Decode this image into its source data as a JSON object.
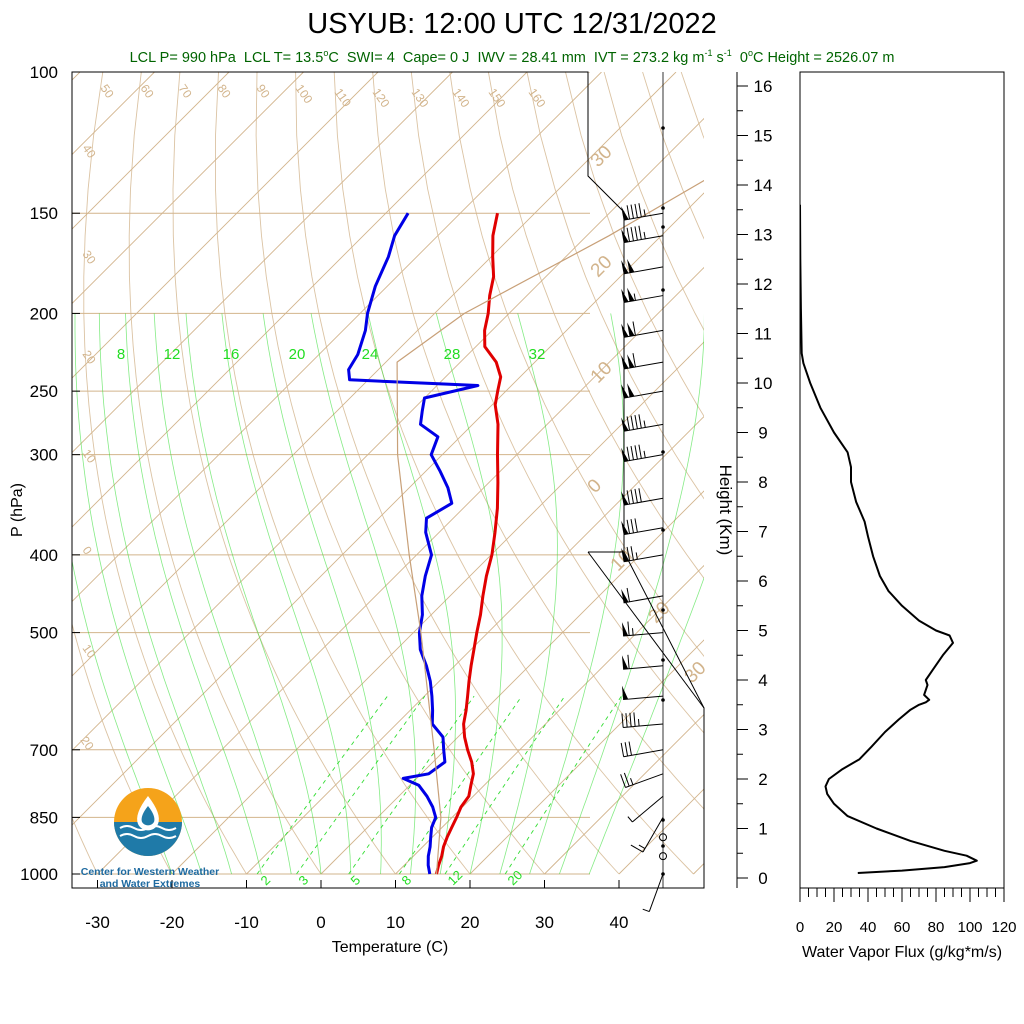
{
  "title": "USYUB: 12:00 UTC 12/31/2022",
  "indices": {
    "lcl_p": "LCL P= 990 hPa",
    "lcl_t": "LCL T= 13.5",
    "swi": "SWI= 4",
    "cape": "Cape= 0 J",
    "iwv": "IWV = 28.41 mm",
    "ivt": "IVT = 273.2 kg m",
    "freezing": "0",
    "freezing_height": "C Height = 2526.07 m"
  },
  "logo": {
    "text": "Center for Western Weather and Water Extremes",
    "icon": "water-drop-logo-icon"
  },
  "colors": {
    "temperature": "#e00000",
    "dewpoint": "#0000e6",
    "isotherm": "#d2b48c",
    "mixing": "#33dd33",
    "label_green": "#006400"
  },
  "chart_data": [
    {
      "type": "line",
      "name": "skew-t",
      "xlabel": "Temperature (C)",
      "ylabel": "P (hPa)",
      "xlim": [
        -34,
        52
      ],
      "x_ticks": [
        -30,
        -20,
        -10,
        0,
        10,
        20,
        30,
        40
      ],
      "p_ticks": [
        100,
        150,
        200,
        250,
        300,
        400,
        500,
        700,
        850,
        1000
      ],
      "ylim": [
        1000,
        100
      ],
      "skew_deg": 45,
      "grid": true,
      "isotherm_labels": [
        "50",
        "60",
        "70",
        "80",
        "90",
        "100",
        "110",
        "120",
        "130",
        "140",
        "150",
        "160",
        "40",
        "30",
        "20",
        "10",
        "0",
        "10",
        "20"
      ],
      "isotherm_right_labels": [
        "30",
        "20",
        "10",
        "0",
        "10",
        "20",
        "30"
      ],
      "mixing_labels_top": [
        "8",
        "12",
        "16",
        "20",
        "24",
        "28",
        "32"
      ],
      "mixing_labels_bottom": [
        "2",
        "3",
        "5",
        "8",
        "12",
        "20"
      ],
      "series": [
        {
          "name": "Temperature",
          "values": [
            [
              1000,
              15.5
            ],
            [
              975,
              14.6
            ],
            [
              950,
              13.8
            ],
            [
              925,
              12.8
            ],
            [
              900,
              12.0
            ],
            [
              875,
              11.3
            ],
            [
              850,
              10.6
            ],
            [
              825,
              9.8
            ],
            [
              800,
              9.4
            ],
            [
              775,
              8.2
            ],
            [
              750,
              7.0
            ],
            [
              725,
              5.2
            ],
            [
              700,
              3.0
            ],
            [
              675,
              0.9
            ],
            [
              650,
              -1.0
            ],
            [
              625,
              -2.5
            ],
            [
              600,
              -4.2
            ],
            [
              575,
              -6.0
            ],
            [
              550,
              -7.8
            ],
            [
              525,
              -9.6
            ],
            [
              500,
              -11.5
            ],
            [
              475,
              -13.4
            ],
            [
              450,
              -15.6
            ],
            [
              425,
              -17.8
            ],
            [
              400,
              -19.9
            ],
            [
              375,
              -22.5
            ],
            [
              350,
              -25.4
            ],
            [
              325,
              -28.8
            ],
            [
              300,
              -32.6
            ],
            [
              275,
              -36.6
            ],
            [
              260,
              -39.6
            ],
            [
              250,
              -41.1
            ],
            [
              240,
              -42.6
            ],
            [
              230,
              -45.2
            ],
            [
              220,
              -48.8
            ],
            [
              210,
              -51.0
            ],
            [
              200,
              -52.8
            ],
            [
              190,
              -55.0
            ],
            [
              180,
              -57.0
            ],
            [
              170,
              -59.8
            ],
            [
              160,
              -62.6
            ],
            [
              150,
              -65.0
            ]
          ]
        },
        {
          "name": "Dewpoint",
          "values": [
            [
              1000,
              14.6
            ],
            [
              975,
              13.2
            ],
            [
              950,
              12.0
            ],
            [
              925,
              11.0
            ],
            [
              900,
              9.8
            ],
            [
              875,
              8.6
            ],
            [
              850,
              7.8
            ],
            [
              825,
              6.0
            ],
            [
              800,
              3.8
            ],
            [
              775,
              1.2
            ],
            [
              760,
              -1.8
            ],
            [
              750,
              1.0
            ],
            [
              725,
              1.6
            ],
            [
              700,
              -0.2
            ],
            [
              675,
              -2.0
            ],
            [
              650,
              -5.2
            ],
            [
              625,
              -7.0
            ],
            [
              600,
              -9.0
            ],
            [
              575,
              -11.2
            ],
            [
              550,
              -13.8
            ],
            [
              525,
              -16.8
            ],
            [
              500,
              -19.2
            ],
            [
              475,
              -21.2
            ],
            [
              450,
              -23.8
            ],
            [
              425,
              -26.0
            ],
            [
              400,
              -28.0
            ],
            [
              375,
              -31.8
            ],
            [
              360,
              -33.6
            ],
            [
              345,
              -32.2
            ],
            [
              330,
              -34.8
            ],
            [
              315,
              -38.0
            ],
            [
              300,
              -41.5
            ],
            [
              285,
              -43.0
            ],
            [
              275,
              -47.0
            ],
            [
              265,
              -48.5
            ],
            [
              255,
              -50.0
            ],
            [
              246,
              -44.5
            ],
            [
              242,
              -62.5
            ],
            [
              235,
              -64.0
            ],
            [
              225,
              -64.8
            ],
            [
              210,
              -67.0
            ],
            [
              200,
              -69.0
            ],
            [
              185,
              -71.6
            ],
            [
              170,
              -73.8
            ],
            [
              160,
              -75.8
            ],
            [
              150,
              -77.0
            ]
          ]
        },
        {
          "name": "Parcel",
          "values": [
            [
              1000,
              15.5
            ],
            [
              850,
              8.5
            ],
            [
              700,
              -1.5
            ],
            [
              600,
              -9.5
            ],
            [
              500,
              -19.0
            ],
            [
              400,
              -31.0
            ],
            [
              300,
              -46.0
            ],
            [
              230,
              -58.5
            ],
            [
              200,
              -56.0
            ],
            [
              160,
              -47.0
            ],
            [
              130,
              -40.0
            ],
            [
              100,
              -38.0
            ]
          ]
        }
      ],
      "wind_barbs": [
        {
          "p": 1000,
          "speed": 5,
          "dir": 200
        },
        {
          "p": 950,
          "speed": 0,
          "dir": 0
        },
        {
          "p": 900,
          "speed": 0,
          "dir": 0
        },
        {
          "p": 850,
          "speed": 15,
          "dir": 210
        },
        {
          "p": 800,
          "speed": 5,
          "dir": 230
        },
        {
          "p": 750,
          "speed": 25,
          "dir": 250
        },
        {
          "p": 700,
          "speed": 30,
          "dir": 260
        },
        {
          "p": 650,
          "speed": 45,
          "dir": 265
        },
        {
          "p": 600,
          "speed": 50,
          "dir": 265
        },
        {
          "p": 550,
          "speed": 60,
          "dir": 265
        },
        {
          "p": 500,
          "speed": 65,
          "dir": 265
        },
        {
          "p": 450,
          "speed": 60,
          "dir": 260
        },
        {
          "p": 400,
          "speed": 75,
          "dir": 260
        },
        {
          "p": 370,
          "speed": 80,
          "dir": 260
        },
        {
          "p": 340,
          "speed": 90,
          "dir": 260
        },
        {
          "p": 300,
          "speed": 95,
          "dir": 260
        },
        {
          "p": 275,
          "speed": 95,
          "dir": 260
        },
        {
          "p": 250,
          "speed": 100,
          "dir": 260
        },
        {
          "p": 230,
          "speed": 110,
          "dir": 260
        },
        {
          "p": 210,
          "speed": 110,
          "dir": 260
        },
        {
          "p": 190,
          "speed": 105,
          "dir": 260
        },
        {
          "p": 175,
          "speed": 100,
          "dir": 260
        },
        {
          "p": 160,
          "speed": 95,
          "dir": 260
        },
        {
          "p": 150,
          "speed": 95,
          "dir": 260
        }
      ]
    },
    {
      "type": "line",
      "name": "water-vapor-flux",
      "xlabel": "Water Vapor Flux (g/kg*m/s)",
      "ylabel": "Height (Km)",
      "xlim": [
        0,
        120
      ],
      "ylim": [
        -0.3,
        16.4
      ],
      "x_ticks": [
        0,
        20,
        40,
        60,
        80,
        100,
        120
      ],
      "y_ticks": [
        0,
        1,
        2,
        3,
        4,
        5,
        6,
        7,
        8,
        9,
        10,
        11,
        12,
        13,
        14,
        15,
        16
      ],
      "series": [
        {
          "name": "Water Vapor Flux",
          "values": [
            [
              34,
              0.1
            ],
            [
              60,
              0.15
            ],
            [
              85,
              0.22
            ],
            [
              100,
              0.3
            ],
            [
              104,
              0.35
            ],
            [
              98,
              0.45
            ],
            [
              85,
              0.55
            ],
            [
              65,
              0.75
            ],
            [
              45,
              1.0
            ],
            [
              28,
              1.25
            ],
            [
              20,
              1.5
            ],
            [
              16,
              1.7
            ],
            [
              15,
              1.85
            ],
            [
              17,
              2.0
            ],
            [
              25,
              2.2
            ],
            [
              35,
              2.4
            ],
            [
              42,
              2.65
            ],
            [
              50,
              2.95
            ],
            [
              58,
              3.2
            ],
            [
              65,
              3.4
            ],
            [
              70,
              3.5
            ],
            [
              74,
              3.55
            ],
            [
              76,
              3.6
            ],
            [
              73,
              3.7
            ],
            [
              75,
              3.9
            ],
            [
              74,
              4.0
            ],
            [
              78,
              4.2
            ],
            [
              84,
              4.5
            ],
            [
              90,
              4.75
            ],
            [
              88,
              4.9
            ],
            [
              80,
              5.0
            ],
            [
              70,
              5.2
            ],
            [
              60,
              5.5
            ],
            [
              52,
              5.8
            ],
            [
              47,
              6.1
            ],
            [
              43,
              6.5
            ],
            [
              40,
              6.9
            ],
            [
              38,
              7.2
            ],
            [
              33,
              7.6
            ],
            [
              30,
              8.0
            ],
            [
              30,
              8.3
            ],
            [
              28,
              8.6
            ],
            [
              20,
              9.0
            ],
            [
              12,
              9.5
            ],
            [
              6,
              10.0
            ],
            [
              2,
              10.4
            ],
            [
              1,
              10.6
            ],
            [
              0.5,
              11.5
            ],
            [
              0.2,
              12.5
            ],
            [
              0,
              13.6
            ]
          ]
        }
      ]
    }
  ]
}
